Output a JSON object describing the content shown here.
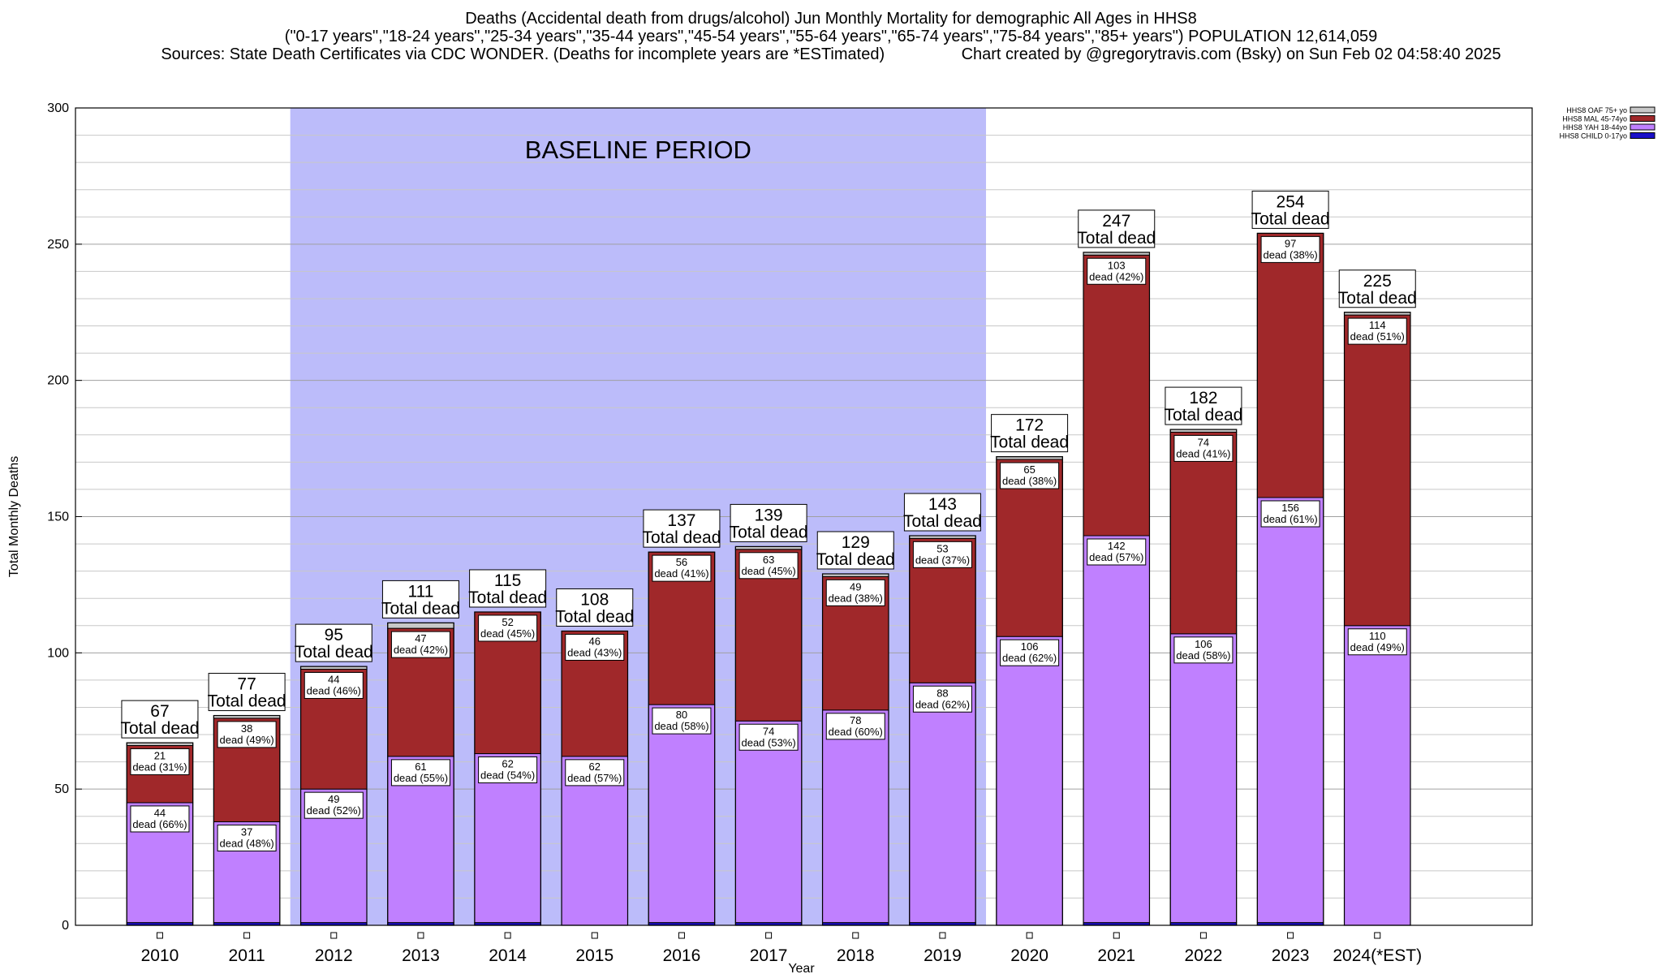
{
  "title_lines": [
    "Deaths (Accidental death from drugs/alcohol) Jun Monthly Mortality for demographic All Ages in HHS8",
    "(\"0-17 years\",\"18-24 years\",\"25-34 years\",\"35-44 years\",\"45-54 years\",\"55-64 years\",\"65-74 years\",\"75-84 years\",\"85+ years\") POPULATION 12,614,059",
    "Sources: State Death Certificates via CDC WONDER. (Deaths for incomplete years are *ESTimated)                 Chart created by @gregorytravis.com (Bsky) on Sun Feb 02 04:58:40 2025"
  ],
  "chart_data": {
    "type": "bar",
    "stacked": true,
    "xlabel": "Year",
    "ylabel": "Total Monthly Deaths",
    "ylim": [
      0,
      300
    ],
    "yticks": [
      0,
      50,
      100,
      150,
      200,
      250,
      300
    ],
    "grid": true,
    "legend_position": "top-right",
    "baseline_band": {
      "label": "BASELINE PERIOD",
      "from": "2012",
      "to": "2019",
      "color": "#bcbcfa"
    },
    "total_suffix": "Total dead",
    "segment_prefix": "dead",
    "categories": [
      "2010",
      "2011",
      "2012",
      "2013",
      "2014",
      "2015",
      "2016",
      "2017",
      "2018",
      "2019",
      "2020",
      "2021",
      "2022",
      "2023",
      "2024(*EST)"
    ],
    "totals": [
      67,
      77,
      95,
      111,
      115,
      108,
      137,
      139,
      129,
      143,
      172,
      247,
      182,
      254,
      225
    ],
    "series": [
      {
        "name": "HHS8 CHILD 0-17yo",
        "color": "#1a0fc8",
        "values": [
          1,
          1,
          1,
          1,
          1,
          0,
          1,
          1,
          1,
          1,
          0,
          1,
          1,
          1,
          0
        ]
      },
      {
        "name": "HHS8 YAH 18-44yo",
        "color": "#c080ff",
        "values": [
          44,
          37,
          49,
          61,
          62,
          62,
          80,
          74,
          78,
          88,
          106,
          142,
          106,
          156,
          110
        ],
        "labels": [
          "44",
          "37",
          "49",
          "61",
          "62",
          "62",
          "80",
          "74",
          "78",
          "88",
          "106",
          "142",
          "106",
          "156",
          "110"
        ],
        "pct_labels": [
          "(66%)",
          "(48%)",
          "(52%)",
          "(55%)",
          "(54%)",
          "(57%)",
          "(58%)",
          "(53%)",
          "(60%)",
          "(62%)",
          "(62%)",
          "(57%)",
          "(58%)",
          "(61%)",
          "(49%)"
        ]
      },
      {
        "name": "HHS8 MAL 45-74yo",
        "color": "#a0282a",
        "values": [
          21,
          38,
          44,
          47,
          52,
          46,
          56,
          63,
          49,
          53,
          65,
          103,
          74,
          97,
          114
        ],
        "labels": [
          "21",
          "38",
          "44",
          "47",
          "52",
          "46",
          "56",
          "63",
          "49",
          "53",
          "65",
          "103",
          "74",
          "97",
          "114"
        ],
        "pct_labels": [
          "(31%)",
          "(49%)",
          "(46%)",
          "(42%)",
          "(45%)",
          "(43%)",
          "(41%)",
          "(45%)",
          "(38%)",
          "(37%)",
          "(38%)",
          "(42%)",
          "(41%)",
          "(38%)",
          "(51%)"
        ]
      },
      {
        "name": "HHS8 OAF 75+ yo",
        "color": "#c8c8c8",
        "values": [
          1,
          1,
          1,
          2,
          0,
          0,
          0,
          1,
          1,
          1,
          1,
          1,
          1,
          0,
          1
        ]
      }
    ],
    "legend_order": [
      "HHS8 OAF 75+ yo",
      "HHS8 MAL 45-74yo",
      "HHS8 YAH 18-44yo",
      "HHS8 CHILD 0-17yo"
    ]
  }
}
